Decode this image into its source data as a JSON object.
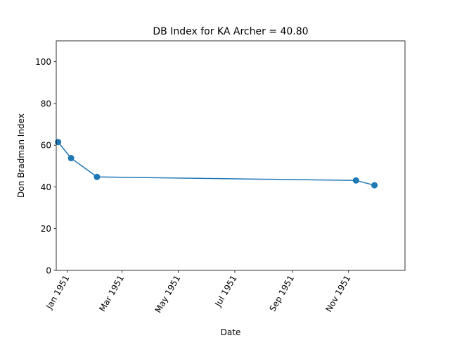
{
  "chart_data": {
    "type": "line",
    "title": "DB Index for KA Archer = 40.80",
    "xlabel": "Date",
    "ylabel": "Don Bradman Index",
    "xlim": [
      "1950-12-20",
      "1952-01-01"
    ],
    "ylim": [
      0,
      110
    ],
    "y_ticks": [
      0,
      20,
      40,
      60,
      80,
      100
    ],
    "x_ticks": [
      {
        "date": "1951-01-01",
        "label": "Jan 1951"
      },
      {
        "date": "1951-03-01",
        "label": "Mar 1951"
      },
      {
        "date": "1951-05-01",
        "label": "May 1951"
      },
      {
        "date": "1951-07-01",
        "label": "Jul 1951"
      },
      {
        "date": "1951-09-01",
        "label": "Sep 1951"
      },
      {
        "date": "1951-11-01",
        "label": "Nov 1951"
      }
    ],
    "series": [
      {
        "color": "#1f77b4",
        "marker": "circle",
        "points": [
          {
            "x": "1950-12-22",
            "y": 61.5
          },
          {
            "x": "1951-01-05",
            "y": 53.8
          },
          {
            "x": "1951-02-02",
            "y": 44.8
          },
          {
            "x": "1951-11-09",
            "y": 43.1
          },
          {
            "x": "1951-11-29",
            "y": 40.8
          }
        ]
      }
    ],
    "grid": false,
    "legend": "none"
  }
}
